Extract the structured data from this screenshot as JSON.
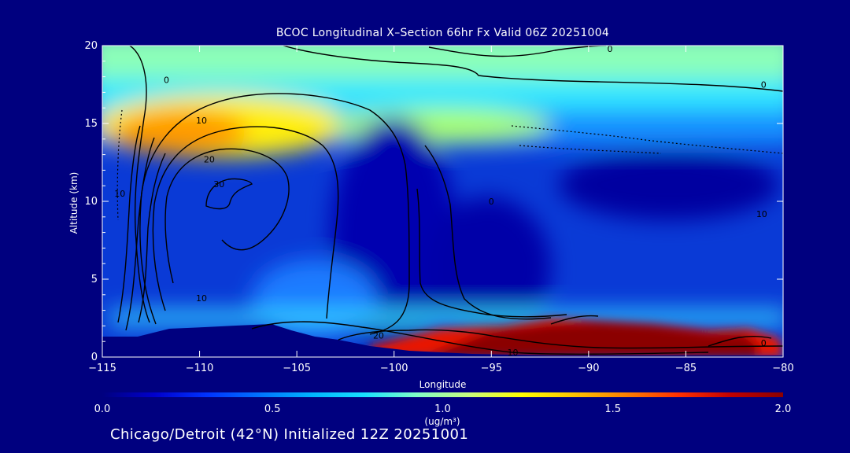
{
  "colors": {
    "background": "#00007f",
    "text": "#ffffff",
    "contour": "#000000",
    "colormap": [
      "#00007f",
      "#0000cc",
      "#0033ff",
      "#0073ff",
      "#00b4ff",
      "#18e0ff",
      "#7fffc8",
      "#c8ff7f",
      "#ffff00",
      "#ffc400",
      "#ff7f00",
      "#ff3000",
      "#c00000",
      "#8b0000"
    ]
  },
  "chart_data": {
    "type": "heatmap",
    "title": "BCOC Longitudinal X–Section 66hr  Fx Valid 06Z 20251004",
    "xlabel": "Longitude",
    "ylabel": "Altitude (km)",
    "xlim": [
      -115,
      -80
    ],
    "ylim": [
      0,
      20
    ],
    "xticks": [
      -115,
      -110,
      -105,
      -100,
      -95,
      -90,
      -85,
      -80
    ],
    "xtick_labels": [
      "−115",
      "−110",
      "−105",
      "−100",
      "−95",
      "−90",
      "−85",
      "−80"
    ],
    "yticks": [
      0,
      5,
      10,
      15,
      20
    ],
    "ytick_labels": [
      "0",
      "5",
      "10",
      "15",
      "20"
    ],
    "colorbar": {
      "min": 0.0,
      "max": 2.0,
      "ticks": [
        "0.0",
        "0.5",
        "1.0",
        "1.5",
        "2.0"
      ],
      "units": "(ug/m³)"
    },
    "contour_labels": [
      {
        "text": "0",
        "lon": -88.9,
        "alt": 19.8
      },
      {
        "text": "0",
        "lon": -81.0,
        "alt": 17.5
      },
      {
        "text": "0",
        "lon": -111.7,
        "alt": 17.8
      },
      {
        "text": "10",
        "lon": -109.9,
        "alt": 15.2
      },
      {
        "text": "20",
        "lon": -109.5,
        "alt": 12.7
      },
      {
        "text": "30",
        "lon": -109.0,
        "alt": 11.1
      },
      {
        "text": "10",
        "lon": -114.1,
        "alt": 10.5
      },
      {
        "text": "10",
        "lon": -81.1,
        "alt": 9.2
      },
      {
        "text": "0",
        "lon": -95.0,
        "alt": 10.0
      },
      {
        "text": "10",
        "lon": -109.9,
        "alt": 3.8
      },
      {
        "text": "20",
        "lon": -100.8,
        "alt": 1.4
      },
      {
        "text": "0",
        "lon": -81.0,
        "alt": 0.9
      },
      {
        "text": "10",
        "lon": -93.9,
        "alt": 0.3
      }
    ],
    "field_features": [
      {
        "desc": "upper-level plume",
        "lon": -109.5,
        "alt": 14.0,
        "value": 1.6
      },
      {
        "desc": "boundary-layer maximum",
        "lon": -88.0,
        "alt": 1.0,
        "value": 2.0
      }
    ],
    "footer": "Chicago/Detroit (42°N) Initialized 12Z 20251001"
  }
}
